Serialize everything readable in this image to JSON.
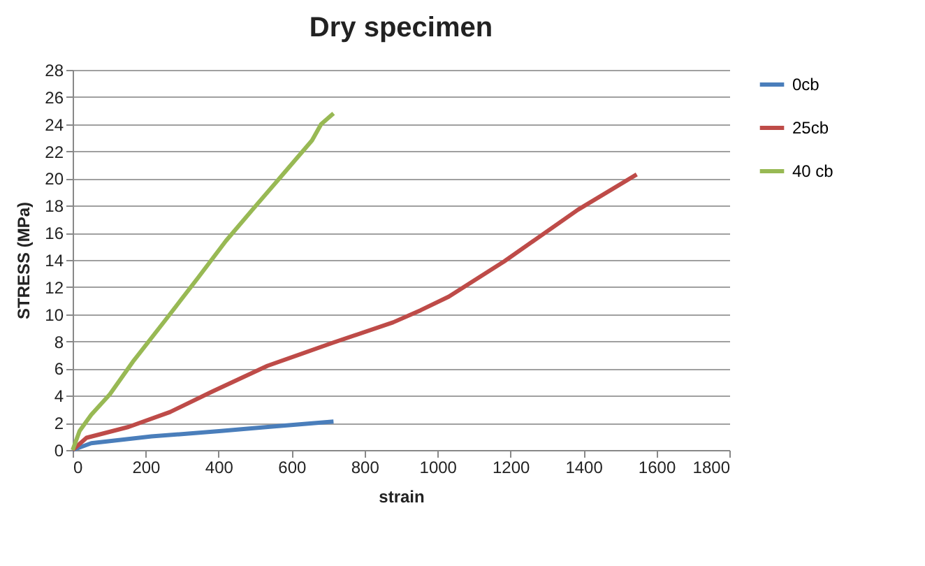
{
  "chart_data": {
    "type": "line",
    "title": "Dry specimen",
    "xlabel": "strain",
    "ylabel": "STRESS (MPa)",
    "xlim": [
      0,
      1800
    ],
    "xticks": [
      0,
      200,
      400,
      600,
      800,
      1000,
      1200,
      1400,
      1600,
      1800
    ],
    "ylim": [
      0,
      28
    ],
    "yticks": [
      0,
      2,
      4,
      6,
      8,
      10,
      12,
      14,
      16,
      18,
      20,
      22,
      24,
      26,
      28
    ],
    "grid": "y",
    "legend": "right",
    "marker": "none",
    "line_style": "solid",
    "series": [
      {
        "name": "0cb",
        "color": "#4a7ebb",
        "x": [
          0,
          51,
          216,
          407,
          535,
          715
        ],
        "values": [
          0,
          0.5,
          1.0,
          1.4,
          1.7,
          2.1
        ]
      },
      {
        "name": "25cb",
        "color": "#be4b48",
        "x": [
          0,
          38,
          153,
          267,
          382,
          534,
          713,
          878,
          954,
          1031,
          1183,
          1385,
          1546
        ],
        "values": [
          0,
          0.9,
          1.7,
          2.8,
          4.3,
          6.2,
          7.9,
          9.4,
          10.3,
          11.3,
          13.9,
          17.7,
          20.3
        ]
      },
      {
        "name": "40 cb",
        "color": "#98b954",
        "x": [
          0,
          19,
          51,
          102,
          165,
          255,
          344,
          420,
          496,
          573,
          656,
          681,
          715
        ],
        "values": [
          0,
          1.4,
          2.6,
          4.1,
          6.5,
          9.6,
          12.7,
          15.4,
          17.8,
          20.2,
          22.8,
          24.0,
          24.8
        ]
      }
    ]
  }
}
